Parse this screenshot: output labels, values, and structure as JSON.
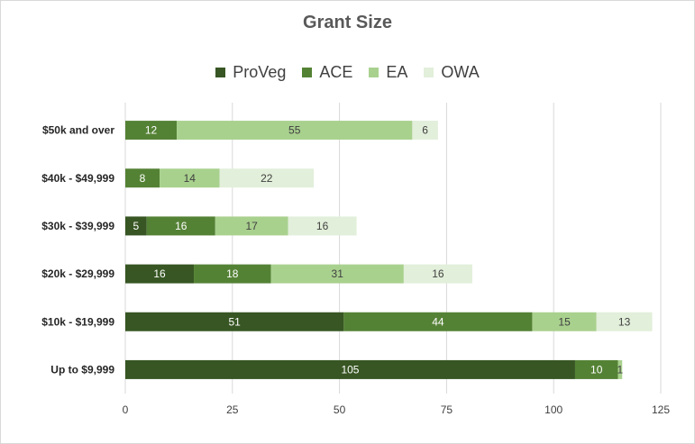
{
  "chart_data": {
    "type": "bar",
    "orientation": "horizontal",
    "stacked": true,
    "title": "Grant Size",
    "categories": [
      "$50k and over",
      "$40k - $49,999",
      "$30k - $39,999",
      "$20k - $29,999",
      "$10k - $19,999",
      "Up to $9,999"
    ],
    "series": [
      {
        "name": "ProVeg",
        "color": "#375623",
        "label_color": "#ffffff",
        "values": [
          0,
          0,
          5,
          16,
          51,
          105
        ]
      },
      {
        "name": "ACE",
        "color": "#548235",
        "label_color": "#ffffff",
        "values": [
          12,
          8,
          16,
          18,
          44,
          10
        ]
      },
      {
        "name": "EA",
        "color": "#a9d18e",
        "label_color": "#404040",
        "values": [
          55,
          14,
          17,
          31,
          15,
          1
        ]
      },
      {
        "name": "OWA",
        "color": "#e2efda",
        "label_color": "#404040",
        "values": [
          6,
          22,
          16,
          16,
          13,
          0
        ]
      }
    ],
    "xlim": [
      0,
      125
    ],
    "xticks": [
      "0",
      "25",
      "50",
      "75",
      "100",
      "125"
    ],
    "xtick_values": [
      0,
      25,
      50,
      75,
      100,
      125
    ],
    "grid": true,
    "legend_position": "top"
  }
}
